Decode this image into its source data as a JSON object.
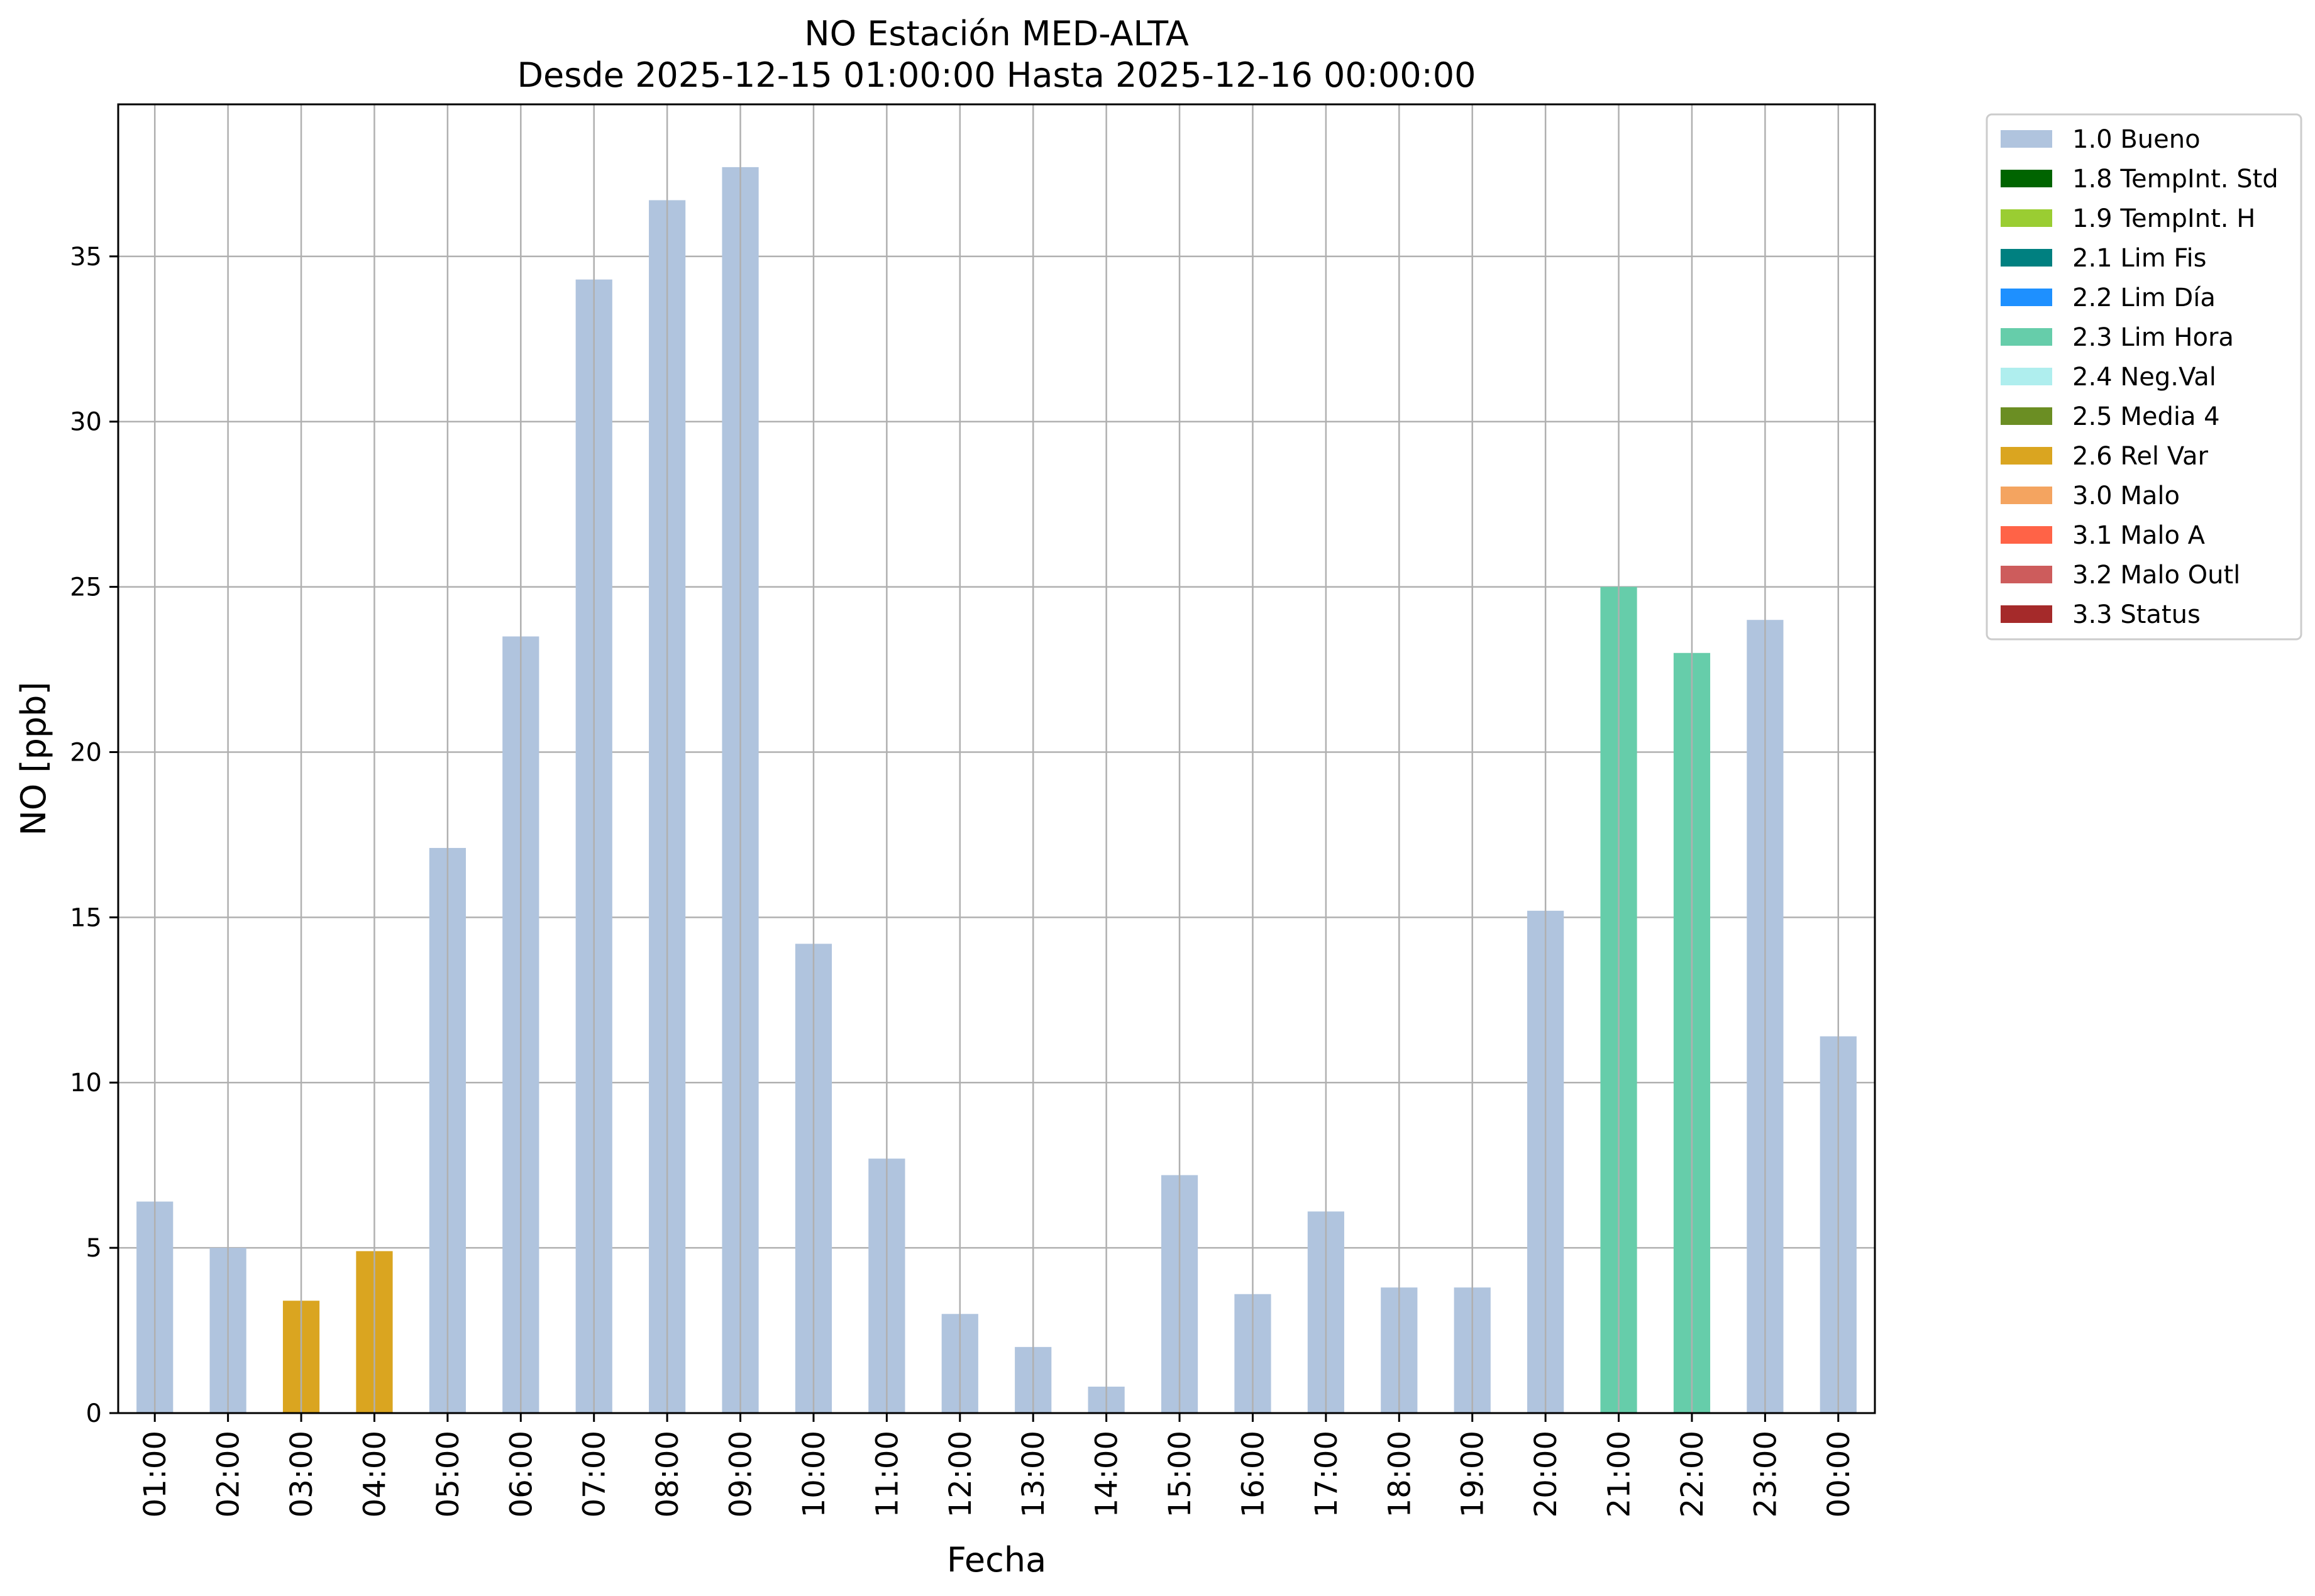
{
  "chart_data": {
    "type": "bar",
    "title": "NO Estación MED-ALTA",
    "subtitle": "Desde 2025-12-15 01:00:00 Hasta 2025-12-16 00:00:00",
    "xlabel": "Fecha",
    "ylabel": "NO [ppb]",
    "ylim": [
      0,
      39.6
    ],
    "yticks": [
      "0",
      "5",
      "10",
      "15",
      "20",
      "25",
      "30",
      "35"
    ],
    "grid": true,
    "legend_position": "outside-right",
    "categories": [
      "01:00",
      "02:00",
      "03:00",
      "04:00",
      "05:00",
      "06:00",
      "07:00",
      "08:00",
      "09:00",
      "10:00",
      "11:00",
      "12:00",
      "13:00",
      "14:00",
      "15:00",
      "16:00",
      "17:00",
      "18:00",
      "19:00",
      "20:00",
      "21:00",
      "22:00",
      "23:00",
      "00:00"
    ],
    "values": [
      6.4,
      5.0,
      3.4,
      4.9,
      17.1,
      23.5,
      34.3,
      36.7,
      37.7,
      14.2,
      7.7,
      3.0,
      2.0,
      0.8,
      7.2,
      3.6,
      6.1,
      3.8,
      3.8,
      15.2,
      25.0,
      23.0,
      24.0,
      11.4
    ],
    "flags": [
      "1.0 Bueno",
      "1.0 Bueno",
      "2.6 Rel Var",
      "2.6 Rel Var",
      "1.0 Bueno",
      "1.0 Bueno",
      "1.0 Bueno",
      "1.0 Bueno",
      "1.0 Bueno",
      "1.0 Bueno",
      "1.0 Bueno",
      "1.0 Bueno",
      "1.0 Bueno",
      "1.0 Bueno",
      "1.0 Bueno",
      "1.0 Bueno",
      "1.0 Bueno",
      "1.0 Bueno",
      "1.0 Bueno",
      "1.0 Bueno",
      "2.3 Lim Hora",
      "2.3 Lim Hora",
      "1.0 Bueno",
      "1.0 Bueno"
    ],
    "legend": [
      {
        "label": "1.0 Bueno",
        "color": "#b0c4de"
      },
      {
        "label": "1.8 TempInt. Std",
        "color": "#006400"
      },
      {
        "label": "1.9 TempInt. H",
        "color": "#9acd32"
      },
      {
        "label": "2.1 Lim Fis",
        "color": "#008080"
      },
      {
        "label": "2.2 Lim Día",
        "color": "#1e90ff"
      },
      {
        "label": "2.3 Lim Hora",
        "color": "#66cdaa"
      },
      {
        "label": "2.4 Neg.Val",
        "color": "#afeeee"
      },
      {
        "label": "2.5 Media 4",
        "color": "#6b8e23"
      },
      {
        "label": "2.6 Rel Var",
        "color": "#daa520"
      },
      {
        "label": "3.0 Malo",
        "color": "#f4a460"
      },
      {
        "label": "3.1 Malo A",
        "color": "#ff6347"
      },
      {
        "label": "3.2 Malo Outl",
        "color": "#cd5c5c"
      },
      {
        "label": "3.3 Status",
        "color": "#a52a2a"
      }
    ]
  }
}
